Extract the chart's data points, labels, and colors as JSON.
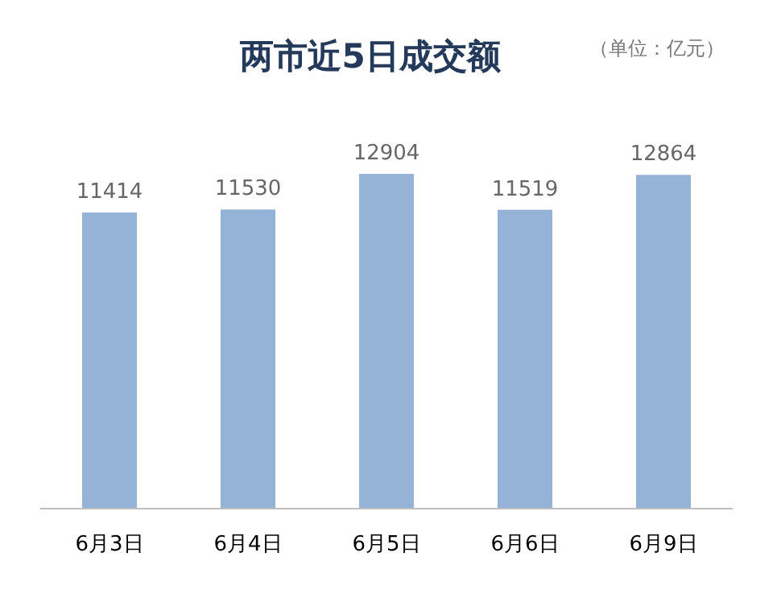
{
  "chart_data": {
    "type": "bar",
    "title": "两市近5日成交额",
    "annotations": [
      "（单位：亿元）"
    ],
    "categories": [
      "6月3日",
      "6月4日",
      "6月5日",
      "6月6日",
      "6月9日"
    ],
    "values": [
      11414,
      11530,
      12904,
      11519,
      12864
    ],
    "color": "#95b3d7",
    "data_labels": true
  }
}
